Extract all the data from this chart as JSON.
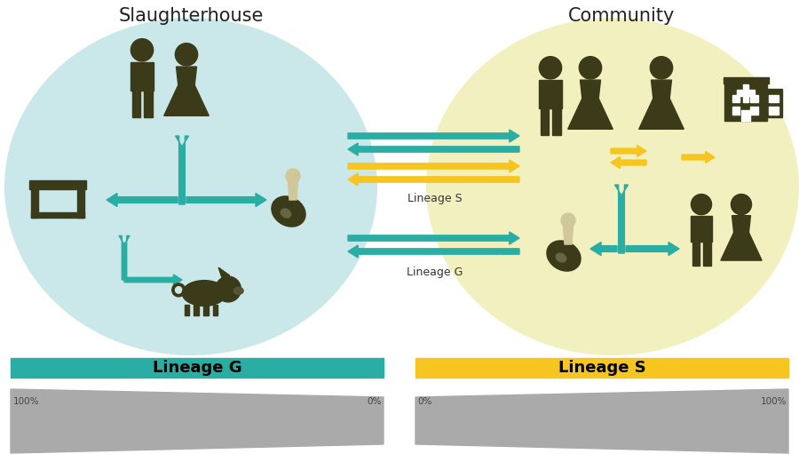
{
  "title_slaughter": "Slaughterhouse",
  "title_community": "Community",
  "lineage_g_label": "Lineage G",
  "lineage_s_label": "Lineage S",
  "lineage_g_color": "#2AADA3",
  "lineage_s_color": "#F7C520",
  "slaughter_bg": "#A8D8DC",
  "community_bg": "#F0EDB0",
  "icon_color": "#3B3B1A",
  "arrow_g_color": "#2AADA3",
  "arrow_s_color": "#F7C520",
  "pct_100_left": "100%",
  "pct_0_left": "0%",
  "pct_0_right": "0%",
  "pct_100_right": "100%",
  "lineage_s_between": "Lineage S",
  "lineage_g_between": "Lineage G",
  "fig_width": 9.0,
  "fig_height": 5.11,
  "bg_color": "#FFFFFF",
  "gray_trap": "#AAAAAA",
  "title_fontsize": 15,
  "label_fontsize": 9,
  "bar_fontsize": 13,
  "pct_fontsize": 7.5
}
